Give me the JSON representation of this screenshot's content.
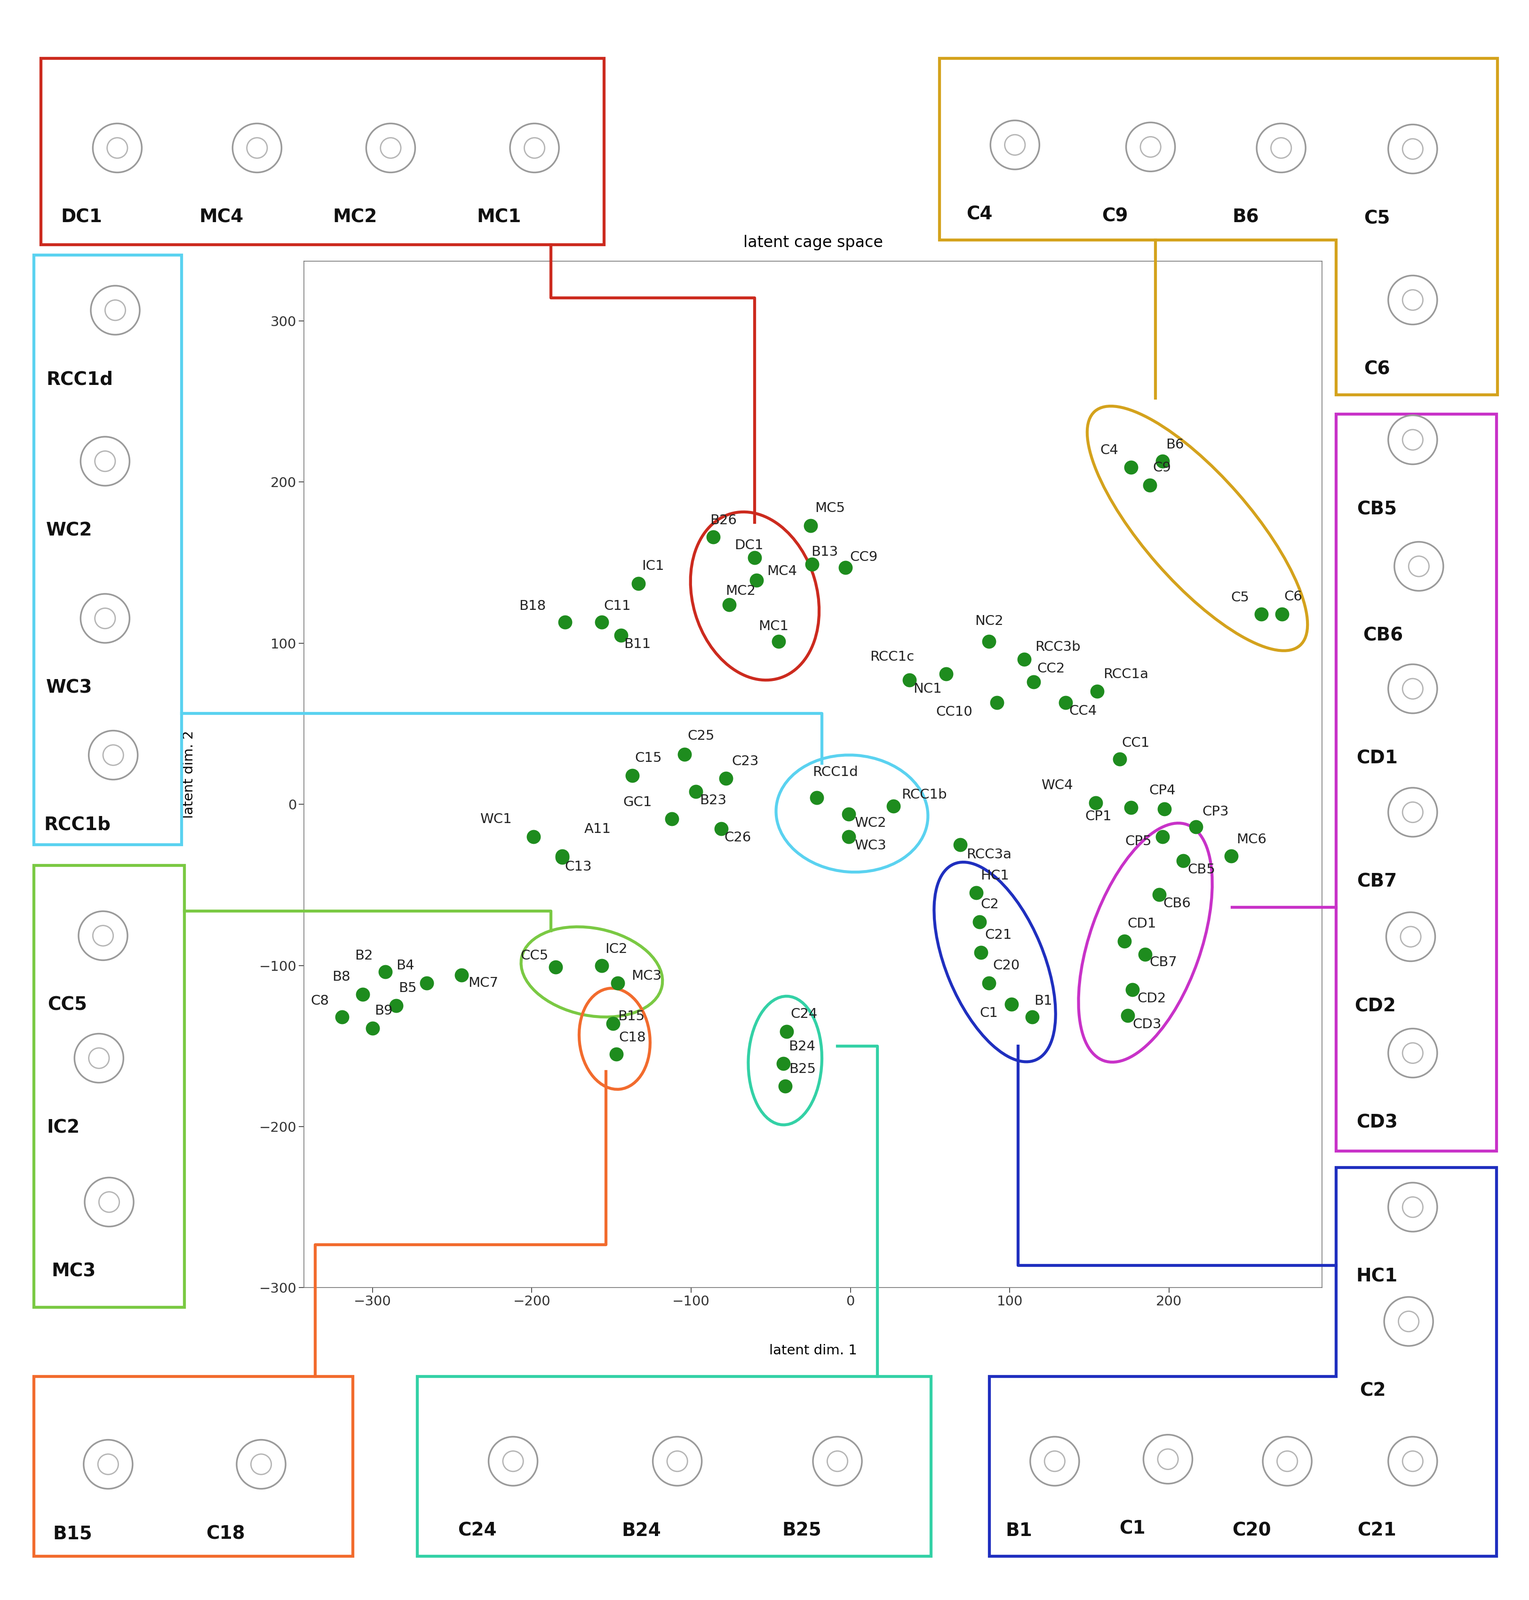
{
  "chart_data": {
    "type": "scatter",
    "title": "latent cage space",
    "x_label": "latent dim. 1",
    "y_label": "latent dim. 2",
    "xlim": [
      -343,
      296
    ],
    "ylim": [
      -300,
      337
    ],
    "xticks": [
      {
        "value": -300,
        "label": "−300"
      },
      {
        "value": -200,
        "label": "−200"
      },
      {
        "value": -100,
        "label": "−100"
      },
      0,
      100,
      200
    ],
    "yticks": [
      {
        "value": -300,
        "label": "−300"
      },
      {
        "value": -200,
        "label": "−200"
      },
      {
        "value": -100,
        "label": "−100"
      },
      0,
      100,
      200,
      300
    ],
    "grid": false,
    "color": "#1e8c1e",
    "marker": "o",
    "points": {
      "labels": [
        "B26",
        "DC1",
        "MC4",
        "MC2",
        "MC1",
        "MC5",
        "B13",
        "CC9",
        "IC1",
        "B18",
        "C11",
        "B11",
        "C4",
        "B6",
        "C9",
        "C5",
        "C6",
        "NC2",
        "RCC3b",
        "CC2",
        "RCC1a",
        "RCC1c",
        "NC1",
        "CC10",
        "CC4",
        "CC1",
        "WC4",
        "CP1",
        "CP4",
        "CP3",
        "CP5",
        "CB5",
        "MC6",
        "CB6",
        "CD1",
        "CB7",
        "CD2",
        "CD3",
        "RCC3a",
        "HC1",
        "C2",
        "C21",
        "C20",
        "C1",
        "B1",
        "RCC1d",
        "WC2",
        "WC3",
        "RCC1b",
        "C25",
        "C15",
        "C23",
        "B23",
        "GC1",
        "C26",
        "WC1",
        "A11",
        "C13",
        "B2",
        "B4",
        "B8",
        "B5",
        "C8",
        "B9",
        "MC7",
        "CC5",
        "IC2",
        "MC3",
        "B15",
        "C18",
        "C24",
        "B24",
        "B25"
      ],
      "x": [
        -86,
        -60,
        -59,
        -76,
        -45,
        -25,
        -24,
        -3,
        -133,
        -179,
        -156,
        -144,
        176,
        196,
        188,
        258,
        271,
        87,
        109,
        115,
        155,
        37,
        60,
        92,
        135,
        169,
        154,
        176,
        197,
        217,
        196,
        209,
        239,
        194,
        172,
        185,
        177,
        174,
        69,
        79,
        81,
        82,
        87,
        101,
        114,
        -21,
        -1,
        -1,
        27,
        -104,
        -137,
        -78,
        -97,
        -112,
        -81,
        -199,
        -181,
        -181,
        -292,
        -266,
        -306,
        -285,
        -319,
        -300,
        -244,
        -185,
        -156,
        -146,
        -149,
        -147,
        -40,
        -42,
        -41
      ],
      "y": [
        166,
        153,
        139,
        124,
        101,
        173,
        149,
        147,
        137,
        113,
        113,
        105,
        209,
        213,
        198,
        118,
        118,
        101,
        90,
        76,
        70,
        77,
        81,
        63,
        63,
        28,
        1,
        -2,
        -3,
        -14,
        -20,
        -35,
        -32,
        -56,
        -85,
        -93,
        -115,
        -131,
        -25,
        -55,
        -73,
        -92,
        -111,
        -124,
        -132,
        4,
        -6,
        -20,
        -1,
        31,
        18,
        16,
        8,
        -9,
        -15,
        -20,
        -32,
        -33,
        -104,
        -111,
        -118,
        -125,
        -132,
        -139,
        -106,
        -101,
        -100,
        -111,
        -136,
        -155,
        -141,
        -161,
        -175
      ]
    },
    "groups": [
      {
        "members": [
          "DC1",
          "MC4",
          "MC2",
          "MC1"
        ],
        "color": "#cc2a1e"
      },
      {
        "members": [
          "C4",
          "C9",
          "B6",
          "C5",
          "C6"
        ],
        "color": "#d4a21c"
      },
      {
        "members": [
          "RCC1d",
          "WC2",
          "WC3",
          "RCC1b"
        ],
        "color": "#5ad2f0"
      },
      {
        "members": [
          "CC5",
          "IC2",
          "MC3"
        ],
        "color": "#7ac943"
      },
      {
        "members": [
          "B15",
          "C18"
        ],
        "color": "#f26b2d"
      },
      {
        "members": [
          "C24",
          "B24",
          "B25"
        ],
        "color": "#33d1a6"
      },
      {
        "members": [
          "HC1",
          "C2",
          "B1",
          "C1",
          "C20",
          "C21"
        ],
        "color": "#1f2fbf"
      },
      {
        "members": [
          "CB5",
          "CB6",
          "CD1",
          "CB7",
          "CD2",
          "CD3"
        ],
        "color": "#c832c8"
      }
    ]
  }
}
